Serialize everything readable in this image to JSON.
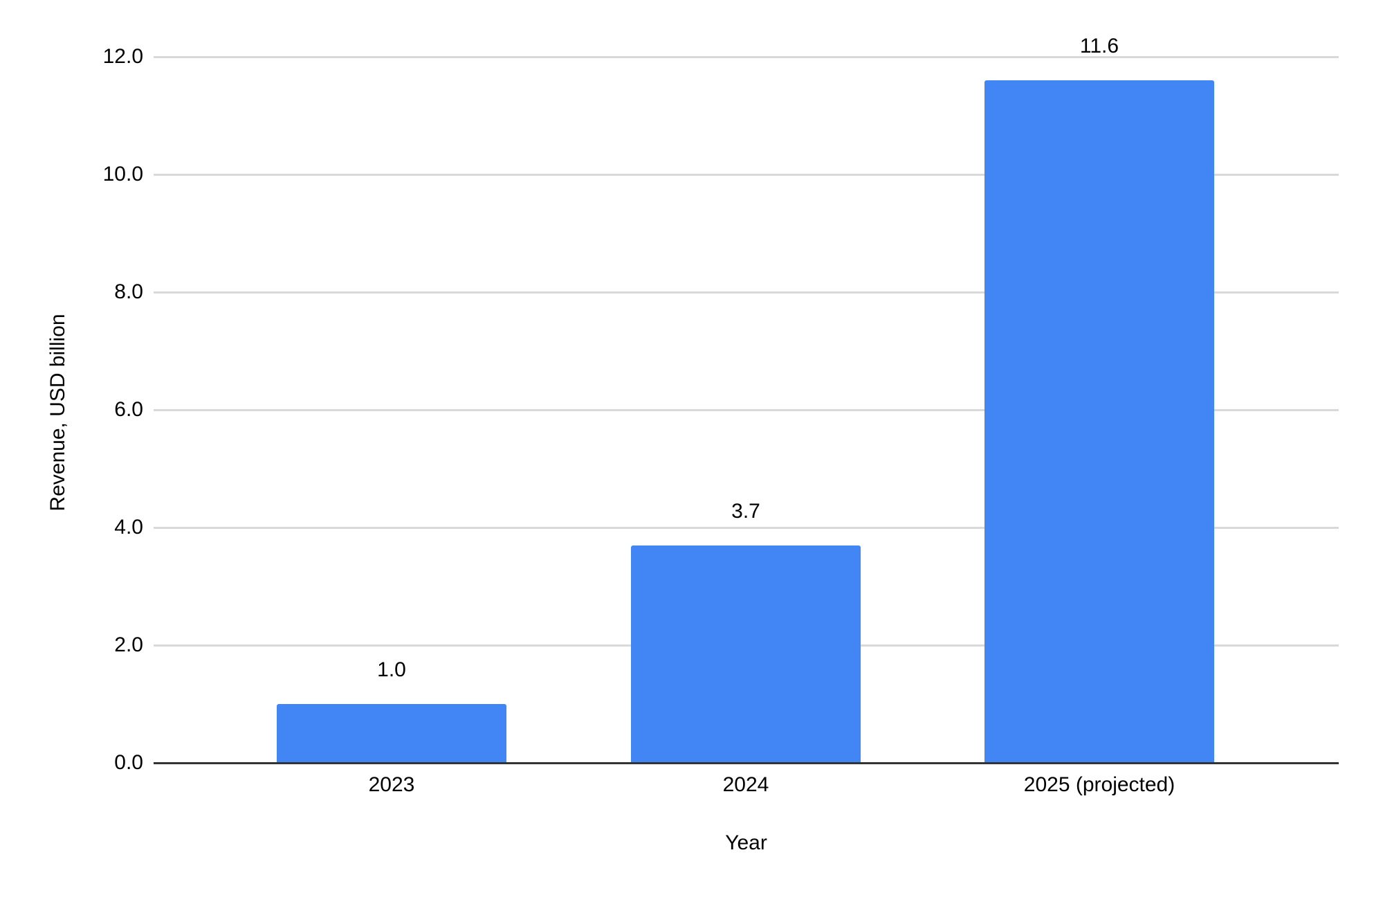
{
  "chart_data": {
    "type": "bar",
    "title": "",
    "categories": [
      "2023",
      "2024",
      "2025 (projected)"
    ],
    "values": [
      1.0,
      3.7,
      11.6
    ],
    "data_labels": [
      "1.0",
      "3.7",
      "11.6"
    ],
    "xlabel": "Year",
    "ylabel": "Revenue, USD billion",
    "ylim": [
      0,
      12
    ],
    "yticks": [
      {
        "value": 0,
        "label": "0.0"
      },
      {
        "value": 2,
        "label": "2.0"
      },
      {
        "value": 4,
        "label": "4.0"
      },
      {
        "value": 6,
        "label": "6.0"
      },
      {
        "value": 8,
        "label": "8.0"
      },
      {
        "value": 10,
        "label": "10.0"
      },
      {
        "value": 12,
        "label": "12.0"
      }
    ],
    "grid": true,
    "legend": "none",
    "colors": {
      "bar": "#4285f4",
      "gridline": "#d9d9d9",
      "axis_line": "#333333",
      "text": "#000000",
      "background": "#ffffff"
    }
  }
}
